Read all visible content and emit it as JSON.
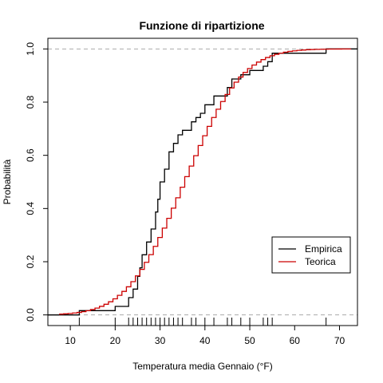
{
  "chart_data": {
    "type": "line",
    "title": "Funzione di ripartizione",
    "xlabel": "Temperatura media Gennaio (°F)",
    "ylabel": "Probabilità",
    "xlim": [
      5,
      74
    ],
    "ylim": [
      -0.04,
      1.04
    ],
    "x_ticks": [
      10,
      20,
      30,
      40,
      50,
      60,
      70
    ],
    "y_ticks": [
      0.0,
      0.2,
      0.4,
      0.6,
      0.8,
      1.0
    ],
    "x_tick_labels": [
      "10",
      "20",
      "30",
      "40",
      "50",
      "60",
      "70"
    ],
    "y_tick_labels": [
      "0.0",
      "0.2",
      "0.4",
      "0.6",
      "0.8",
      "1.0"
    ],
    "reference_lines": [
      0,
      1
    ],
    "legend_position": "bottom-right",
    "legend": [
      {
        "name": "Empirica",
        "color": "#000000"
      },
      {
        "name": "Teorica",
        "color": "#cc0000"
      }
    ],
    "series": [
      {
        "name": "Empirica",
        "color": "#000000",
        "kind": "ecdf",
        "x": [
          12,
          20,
          23,
          24,
          25,
          25.5,
          26,
          27,
          28,
          29,
          29.5,
          30,
          31,
          32,
          33,
          34,
          35,
          37,
          38,
          39,
          40,
          42,
          45,
          46,
          48,
          50,
          53,
          54,
          55,
          67
        ],
        "y": [
          0.016,
          0.032,
          0.065,
          0.097,
          0.145,
          0.177,
          0.226,
          0.274,
          0.323,
          0.387,
          0.435,
          0.5,
          0.548,
          0.613,
          0.645,
          0.677,
          0.694,
          0.726,
          0.742,
          0.758,
          0.79,
          0.823,
          0.855,
          0.887,
          0.903,
          0.919,
          0.935,
          0.952,
          0.984,
          1.0
        ]
      },
      {
        "name": "Teorica",
        "color": "#cc0000",
        "kind": "normal-cdf",
        "mean": 35,
        "sd": 10,
        "x_range": [
          7.5,
          72
        ],
        "step": 1
      }
    ],
    "rug": [
      12,
      20,
      23,
      24,
      25,
      26,
      27,
      28,
      29,
      30,
      31,
      32,
      33,
      34,
      35,
      37,
      38,
      40,
      42,
      45,
      46,
      48,
      50,
      53,
      54,
      55,
      67
    ]
  }
}
